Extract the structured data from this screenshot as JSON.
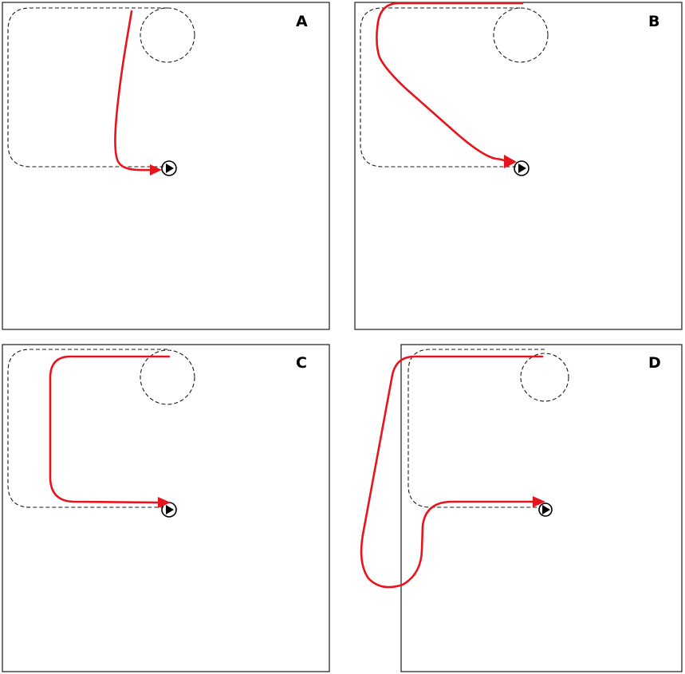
{
  "colors": {
    "trajectory": "#e8141b",
    "reference": "#1a1a1a",
    "frame": "#1a1a1a",
    "background": "#ffffff"
  },
  "panels": [
    {
      "id": "A",
      "label": "A"
    },
    {
      "id": "B",
      "label": "B"
    },
    {
      "id": "C",
      "label": "C"
    },
    {
      "id": "D",
      "label": "D"
    }
  ]
}
